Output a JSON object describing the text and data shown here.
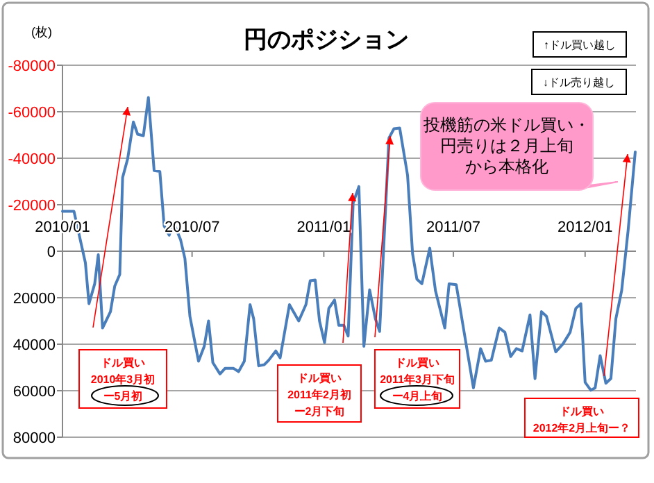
{
  "chart_data": {
    "type": "line",
    "title": "円のポジション",
    "ylabel": "(枚)",
    "color": "#4a7ebb",
    "grid": "y",
    "xlim": [
      "2010-01-01",
      "2012-03-12"
    ],
    "ylim": [
      80000,
      -80000
    ],
    "yticks": [
      -80000,
      -60000,
      -40000,
      -20000,
      0,
      20000,
      40000,
      60000,
      80000
    ],
    "xticks": [
      {
        "value": "2010-01-01",
        "label": "2010/01"
      },
      {
        "value": "2010-07-01",
        "label": "2010/07"
      },
      {
        "value": "2011-01-01",
        "label": "2011/01"
      },
      {
        "value": "2011-07-01",
        "label": "2011/07"
      },
      {
        "value": "2012-01-01",
        "label": "2012/01"
      }
    ],
    "x": [
      "2010-01-01",
      "2010-01-17",
      "2010-02-02",
      "2010-02-07",
      "2010-02-15",
      "2010-02-20",
      "2010-02-26",
      "2010-03-09",
      "2010-03-15",
      "2010-03-22",
      "2010-03-26",
      "2010-04-02",
      "2010-04-10",
      "2010-04-16",
      "2010-04-24",
      "2010-05-01",
      "2010-05-09",
      "2010-05-17",
      "2010-05-23",
      "2010-05-30",
      "2010-06-05",
      "2010-06-15",
      "2010-06-21",
      "2010-06-28",
      "2010-07-10",
      "2010-07-18",
      "2010-07-24",
      "2010-07-30",
      "2010-08-09",
      "2010-08-16",
      "2010-08-22",
      "2010-08-28",
      "2010-09-04",
      "2010-09-12",
      "2010-09-20",
      "2010-09-25",
      "2010-10-02",
      "2010-10-10",
      "2010-10-16",
      "2010-10-26",
      "2010-11-01",
      "2010-11-14",
      "2010-11-27",
      "2010-12-07",
      "2010-12-13",
      "2010-12-20",
      "2010-12-26",
      "2011-01-02",
      "2011-01-08",
      "2011-01-16",
      "2011-01-22",
      "2011-01-29",
      "2011-02-04",
      "2011-02-11",
      "2011-02-19",
      "2011-02-26",
      "2011-03-06",
      "2011-03-14",
      "2011-03-20",
      "2011-04-02",
      "2011-04-09",
      "2011-04-17",
      "2011-04-28",
      "2011-05-05",
      "2011-05-11",
      "2011-05-18",
      "2011-05-29",
      "2011-06-06",
      "2011-06-19",
      "2011-06-25",
      "2011-07-05",
      "2011-07-15",
      "2011-07-29",
      "2011-08-08",
      "2011-08-15",
      "2011-08-23",
      "2011-09-03",
      "2011-09-11",
      "2011-09-19",
      "2011-09-27",
      "2011-10-05",
      "2011-10-16",
      "2011-10-23",
      "2011-11-01",
      "2011-11-08",
      "2011-11-21",
      "2011-12-01",
      "2011-12-11",
      "2011-12-19",
      "2011-12-26",
      "2012-01-01",
      "2012-01-09",
      "2012-01-15",
      "2012-01-22",
      "2012-01-30",
      "2012-02-06",
      "2012-02-13",
      "2012-02-21",
      "2012-03-01",
      "2012-03-11"
    ],
    "values": [
      -17200,
      -17200,
      5000,
      22600,
      14000,
      1500,
      33000,
      26000,
      15000,
      10000,
      -31700,
      -39700,
      -55600,
      -50300,
      -49700,
      -66100,
      -34700,
      -34300,
      -10900,
      -6900,
      -12400,
      -4900,
      3100,
      28000,
      47300,
      40900,
      30000,
      47900,
      52800,
      50400,
      50400,
      50400,
      51800,
      47300,
      23000,
      29000,
      49300,
      48800,
      46900,
      42900,
      45900,
      23000,
      30000,
      23000,
      12700,
      12400,
      30000,
      39300,
      24600,
      21000,
      31900,
      31900,
      36500,
      -20800,
      -27800,
      40900,
      16600,
      29000,
      34500,
      -48700,
      -52700,
      -53000,
      -32700,
      1100,
      12000,
      14000,
      -1300,
      17000,
      33000,
      14000,
      14400,
      33000,
      58800,
      41900,
      47300,
      46900,
      33000,
      34900,
      45300,
      41900,
      42900,
      27400,
      54800,
      26000,
      28000,
      43300,
      39900,
      34900,
      24600,
      22600,
      56400,
      59800,
      58800,
      44900,
      56800,
      54800,
      29000,
      17000,
      -8800,
      -42700
    ],
    "annotations": [
      "↑ドル買い越し",
      "↓ドル売り越し",
      "投機筋の米ドル買い・",
      "円売りは２月上旬",
      "から本格化",
      "ドル買い",
      "2010年3月初",
      "ー5月初",
      "ドル買い",
      "2011年2月初",
      "ー2月下旬",
      "ドル買い",
      "2011年3月下旬",
      "ー4月上旬",
      "ドル買い",
      "2012年2月上旬ー？"
    ]
  }
}
